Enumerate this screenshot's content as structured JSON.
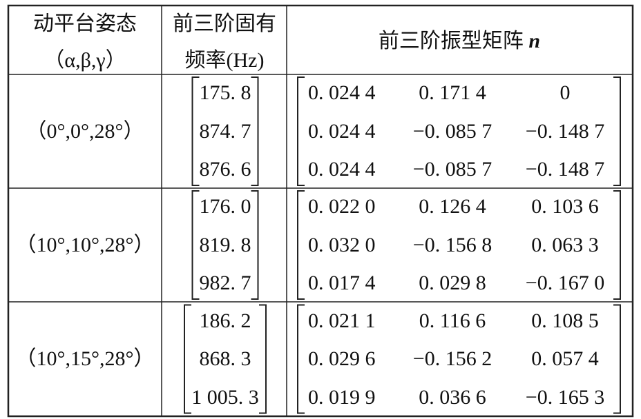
{
  "header": {
    "pose": [
      "动平台姿态",
      "（α,β,γ）"
    ],
    "frequency": [
      "前三阶固有",
      "频率(Hz)"
    ],
    "mode_shape": {
      "text": "前三阶振型矩阵",
      "symbol": "n"
    }
  },
  "rows": [
    {
      "pose": "（0°,0°,28°）",
      "frequencies": [
        "175. 8",
        "874. 7",
        "876. 6"
      ],
      "matrix": [
        [
          "0. 024 4",
          "0. 171 4",
          "0"
        ],
        [
          "0. 024 4",
          "−0. 085 7",
          "−0. 148 7"
        ],
        [
          "0. 024 4",
          "−0. 085 7",
          "−0. 148 7"
        ]
      ]
    },
    {
      "pose": "（10°,10°,28°）",
      "frequencies": [
        "176. 0",
        "819. 8",
        "982. 7"
      ],
      "matrix": [
        [
          "0. 022 0",
          "0. 126 4",
          "0. 103 6"
        ],
        [
          "0. 032 0",
          "−0. 156 8",
          "0. 063 3"
        ],
        [
          "0. 017 4",
          "0. 029 8",
          "−0. 167 0"
        ]
      ]
    },
    {
      "pose": "（10°,15°,28°）",
      "frequencies": [
        "186. 2",
        "868. 3",
        "1 005. 3"
      ],
      "matrix": [
        [
          "0. 021 1",
          "0. 116 6",
          "0. 108 5"
        ],
        [
          "0. 029 6",
          "−0. 156 2",
          "0. 057 4"
        ],
        [
          "0. 019 9",
          "0. 036 6",
          "−0. 165 3"
        ]
      ]
    }
  ]
}
